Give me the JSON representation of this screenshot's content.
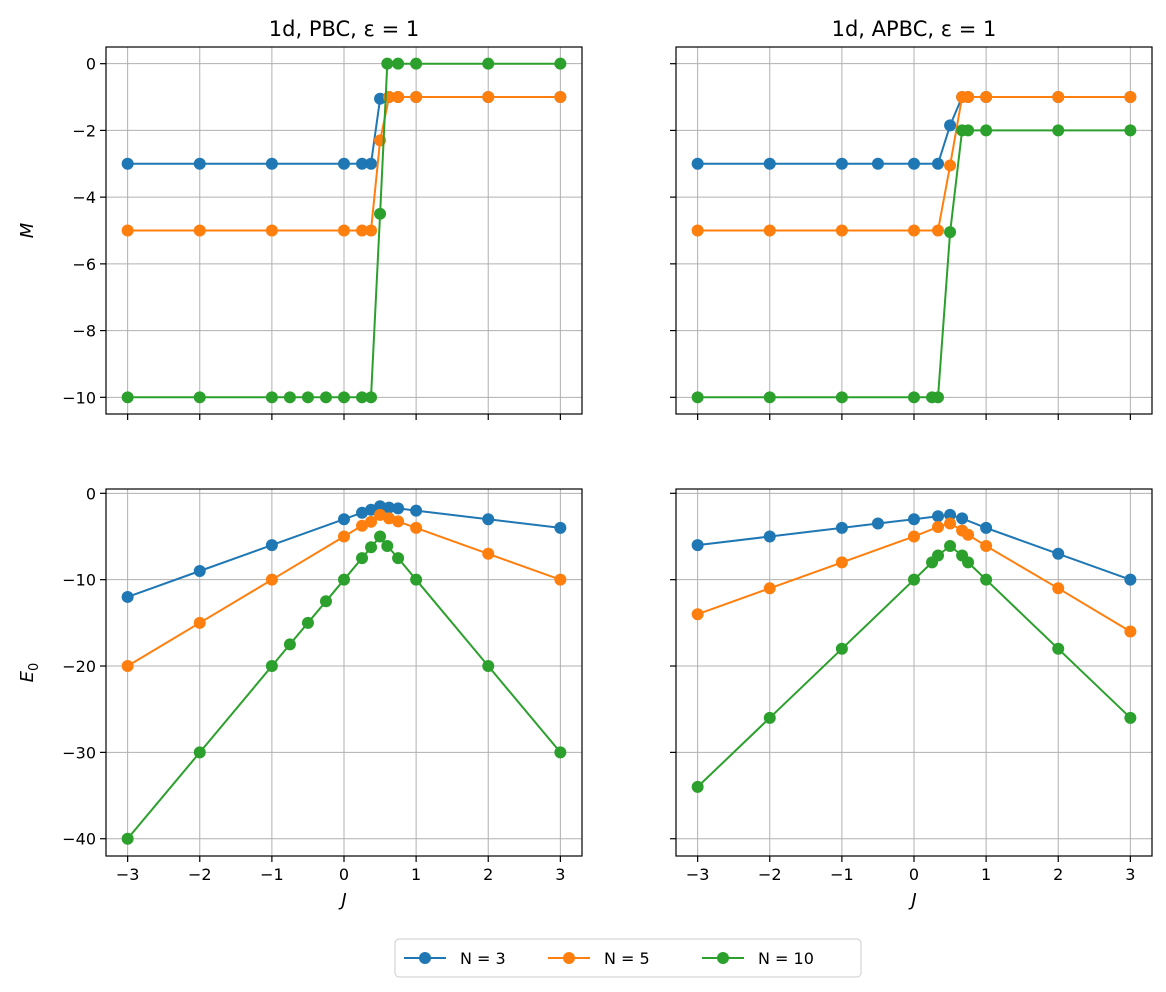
{
  "colors": {
    "N3": "#1f77b4",
    "N5": "#ff7f0e",
    "N10": "#2ca02c",
    "grid": "#b0b0b0"
  },
  "legend": [
    "N = 3",
    "N = 5",
    "N = 10"
  ],
  "chart_data": [
    {
      "type": "line",
      "title": "1d, PBC, ε = 1",
      "xlabel": "",
      "ylabel": "M",
      "xlim": [
        -3.3,
        3.3
      ],
      "ylim": [
        -10.5,
        0.5
      ],
      "xticks": [
        -3,
        -2,
        -1,
        0,
        1,
        2,
        3
      ],
      "yticks": [
        0,
        -2,
        -4,
        -6,
        -8,
        -10
      ],
      "grid": true,
      "series": [
        {
          "name": "N = 3",
          "x": [
            -3,
            -2,
            -1,
            0,
            0.25,
            0.375,
            0.5,
            0.625,
            0.75,
            1,
            2,
            3
          ],
          "y": [
            -3,
            -3,
            -3,
            -3,
            -3,
            -3,
            -1.05,
            -1,
            -1,
            -1,
            -1,
            -1
          ]
        },
        {
          "name": "N = 5",
          "x": [
            -3,
            -2,
            -1,
            0,
            0.25,
            0.375,
            0.5,
            0.625,
            0.75,
            1,
            2,
            3
          ],
          "y": [
            -5,
            -5,
            -5,
            -5,
            -5,
            -5,
            -2.3,
            -1,
            -1,
            -1,
            -1,
            -1
          ]
        },
        {
          "name": "N = 10",
          "x": [
            -3,
            -2,
            -1,
            -0.75,
            -0.5,
            -0.25,
            0,
            0.25,
            0.375,
            0.5,
            0.6,
            0.75,
            1,
            2,
            3
          ],
          "y": [
            -10,
            -10,
            -10,
            -10,
            -10,
            -10,
            -10,
            -10,
            -10,
            -4.5,
            0,
            0,
            0,
            0,
            0
          ]
        }
      ]
    },
    {
      "type": "line",
      "title": "1d, APBC, ε = 1",
      "xlabel": "",
      "ylabel": "",
      "xlim": [
        -3.3,
        3.3
      ],
      "ylim": [
        -10.5,
        0.5
      ],
      "xticks": [
        -3,
        -2,
        -1,
        0,
        1,
        2,
        3
      ],
      "yticks": [
        0,
        -2,
        -4,
        -6,
        -8,
        -10
      ],
      "grid": true,
      "series": [
        {
          "name": "N = 3",
          "x": [
            -3,
            -2,
            -1,
            -0.5,
            0,
            0.333,
            0.5,
            0.667,
            0.75,
            1,
            2,
            3
          ],
          "y": [
            -3,
            -3,
            -3,
            -3,
            -3,
            -3,
            -1.85,
            -1,
            -1,
            -1,
            -1,
            -1
          ]
        },
        {
          "name": "N = 5",
          "x": [
            -3,
            -2,
            -1,
            0,
            0.333,
            0.5,
            0.667,
            0.75,
            1,
            2,
            3
          ],
          "y": [
            -5,
            -5,
            -5,
            -5,
            -5,
            -3.05,
            -1,
            -1,
            -1,
            -1,
            -1
          ]
        },
        {
          "name": "N = 10",
          "x": [
            -3,
            -2,
            -1,
            0,
            0.25,
            0.333,
            0.5,
            0.667,
            0.75,
            1,
            2,
            3
          ],
          "y": [
            -10,
            -10,
            -10,
            -10,
            -10,
            -10,
            -5.05,
            -2,
            -2,
            -2,
            -2,
            -2
          ]
        }
      ]
    },
    {
      "type": "line",
      "title": "",
      "xlabel": "J",
      "ylabel": "E0",
      "xlim": [
        -3.3,
        3.3
      ],
      "ylim": [
        -42,
        0.5
      ],
      "xticks": [
        -3,
        -2,
        -1,
        0,
        1,
        2,
        3
      ],
      "yticks": [
        0,
        -10,
        -20,
        -30,
        -40
      ],
      "grid": true,
      "series": [
        {
          "name": "N = 3",
          "x": [
            -3,
            -2,
            -1,
            0,
            0.25,
            0.375,
            0.5,
            0.625,
            0.75,
            1,
            2,
            3
          ],
          "y": [
            -12,
            -9,
            -6,
            -3,
            -2.25,
            -1.9,
            -1.5,
            -1.65,
            -1.75,
            -2,
            -3,
            -4
          ]
        },
        {
          "name": "N = 5",
          "x": [
            -3,
            -2,
            -1,
            0,
            0.25,
            0.375,
            0.5,
            0.625,
            0.75,
            1,
            2,
            3
          ],
          "y": [
            -20,
            -15,
            -10,
            -5,
            -3.75,
            -3.3,
            -2.5,
            -2.9,
            -3.25,
            -4,
            -7,
            -10
          ]
        },
        {
          "name": "N = 10",
          "x": [
            -3,
            -2,
            -1,
            -0.75,
            -0.5,
            -0.25,
            0,
            0.25,
            0.375,
            0.5,
            0.6,
            0.75,
            1,
            2,
            3
          ],
          "y": [
            -40,
            -30,
            -20,
            -17.5,
            -15,
            -12.5,
            -10,
            -7.5,
            -6.25,
            -5,
            -6.1,
            -7.5,
            -10,
            -20,
            -30
          ]
        }
      ]
    },
    {
      "type": "line",
      "title": "",
      "xlabel": "J",
      "ylabel": "",
      "xlim": [
        -3.3,
        3.3
      ],
      "ylim": [
        -42,
        0.5
      ],
      "xticks": [
        -3,
        -2,
        -1,
        0,
        1,
        2,
        3
      ],
      "yticks": [
        0,
        -10,
        -20,
        -30,
        -40
      ],
      "grid": true,
      "series": [
        {
          "name": "N = 3",
          "x": [
            -3,
            -2,
            -1,
            -0.5,
            0,
            0.333,
            0.5,
            0.667,
            1,
            2,
            3
          ],
          "y": [
            -6,
            -5,
            -4,
            -3.5,
            -3,
            -2.65,
            -2.5,
            -2.9,
            -4,
            -7,
            -10
          ]
        },
        {
          "name": "N = 5",
          "x": [
            -3,
            -2,
            -1,
            0,
            0.333,
            0.5,
            0.667,
            0.75,
            1,
            2,
            3
          ],
          "y": [
            -14,
            -11,
            -8,
            -5,
            -3.9,
            -3.5,
            -4.3,
            -4.8,
            -6.1,
            -11,
            -16
          ]
        },
        {
          "name": "N = 10",
          "x": [
            -3,
            -2,
            -1,
            0,
            0.25,
            0.333,
            0.5,
            0.667,
            0.75,
            1,
            2,
            3
          ],
          "y": [
            -34,
            -26,
            -18,
            -10,
            -8,
            -7.2,
            -6.1,
            -7.2,
            -8,
            -10,
            -18,
            -26
          ]
        }
      ]
    }
  ]
}
